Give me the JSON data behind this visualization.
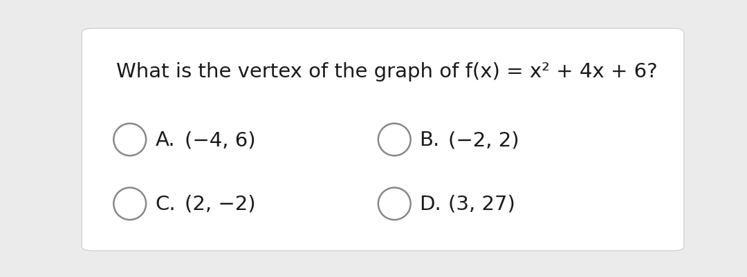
{
  "background_color": "#ebebeb",
  "card_color": "#ffffff",
  "options": [
    {
      "label": "A.",
      "text": "(−4, 6)",
      "col": 0,
      "row": 0
    },
    {
      "label": "B.",
      "text": "(−2, 2)",
      "col": 1,
      "row": 0
    },
    {
      "label": "C.",
      "text": "(2, −2)",
      "col": 0,
      "row": 1
    },
    {
      "label": "D.",
      "text": "(3, 27)",
      "col": 1,
      "row": 1
    }
  ],
  "text_color": "#1a1a1a",
  "circle_edge_color": "#888888",
  "question_fontsize": 21,
  "option_label_fontsize": 21,
  "option_text_fontsize": 21,
  "figsize": [
    10.8,
    4.02
  ],
  "dpi": 100
}
